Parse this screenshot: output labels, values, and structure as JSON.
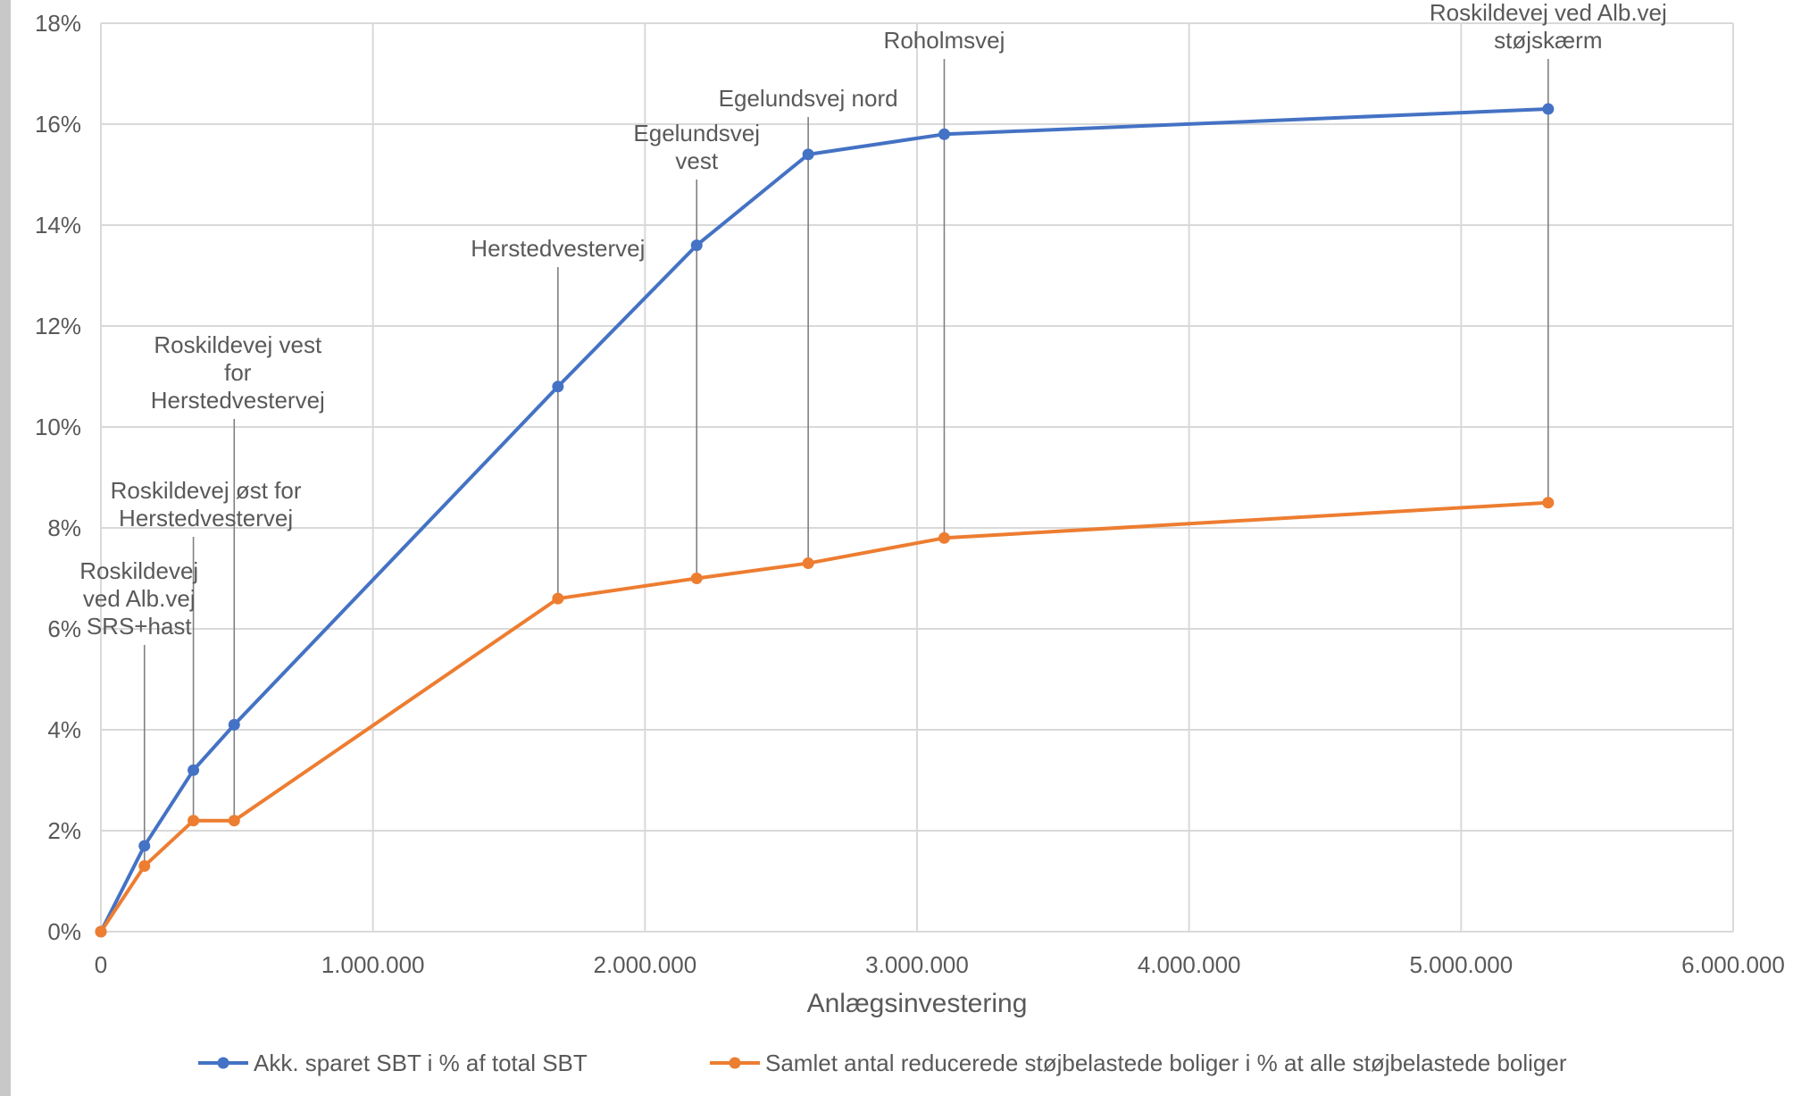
{
  "chart_data": {
    "type": "line",
    "title": "",
    "xlabel": "Anlægsinvestering",
    "ylabel": "",
    "xlim": [
      0,
      6000000
    ],
    "ylim": [
      0,
      18
    ],
    "grid": true,
    "legend_position": "bottom",
    "x_tick_labels": [
      "0",
      "1.000.000",
      "2.000.000",
      "3.000.000",
      "4.000.000",
      "5.000.000",
      "6.000.000"
    ],
    "y_tick_labels": [
      "0%",
      "2%",
      "4%",
      "6%",
      "8%",
      "10%",
      "12%",
      "14%",
      "16%",
      "18%"
    ],
    "series": [
      {
        "name": "Akk. sparet SBT i % af total SBT",
        "color": "#4472c4",
        "x": [
          0,
          160000,
          340000,
          490000,
          1680000,
          2190000,
          2600000,
          3100000,
          5320000
        ],
        "y": [
          0,
          1.7,
          3.2,
          4.1,
          10.8,
          13.6,
          15.4,
          15.8,
          16.3
        ]
      },
      {
        "name": "Samlet antal reducerede støjbelastede boliger i % at alle støjbelastede boliger",
        "color": "#ed7d31",
        "x": [
          0,
          160000,
          340000,
          490000,
          1680000,
          2190000,
          2600000,
          3100000,
          5320000
        ],
        "y": [
          0,
          1.3,
          2.2,
          2.2,
          6.6,
          7.0,
          7.3,
          7.8,
          8.5
        ]
      }
    ],
    "annotations": [
      {
        "lines": [
          "Roskildevej",
          "ved Alb.vej",
          "SRS+hast"
        ],
        "x": 160000
      },
      {
        "lines": [
          "Roskildevej øst for",
          "Herstedvestervej"
        ],
        "x": 340000
      },
      {
        "lines": [
          "Roskildevej vest",
          "for",
          "Herstedvestervej"
        ],
        "x": 490000
      },
      {
        "lines": [
          "Herstedvestervej"
        ],
        "x": 1680000
      },
      {
        "lines": [
          "Egelundsvej",
          "vest"
        ],
        "x": 2190000
      },
      {
        "lines": [
          "Egelundsvej  nord"
        ],
        "x": 2600000
      },
      {
        "lines": [
          "Roholmsvej"
        ],
        "x": 3100000
      },
      {
        "lines": [
          "Roskildevej  ved Alb.vej",
          "støjskærm"
        ],
        "x": 5320000
      }
    ]
  }
}
